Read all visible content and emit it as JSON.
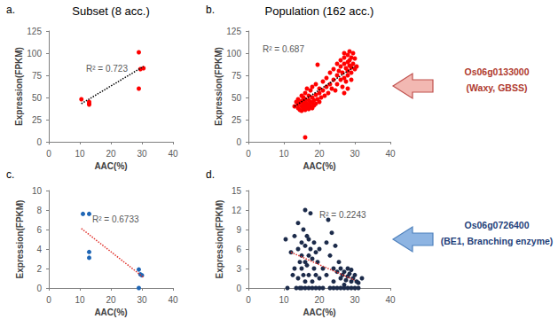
{
  "column_titles": [
    "Subset (8 acc.)",
    "Population (162 acc.)"
  ],
  "genes": [
    {
      "id": "Os06g0133000",
      "name": "(Waxy, GBSS)",
      "color": "#b03a2e"
    },
    {
      "id": "Os06g0726400",
      "name": "(BE1, Branching enzyme)",
      "color": "#1f3f7a"
    }
  ],
  "chart_data": [
    {
      "type": "scatter",
      "title": "a.",
      "xlabel": "AAC(%)",
      "ylabel": "Expression(FPKM)",
      "xlim": [
        0,
        40
      ],
      "xticks": [
        0,
        10,
        20,
        30,
        40
      ],
      "ylim": [
        0,
        125
      ],
      "yticks": [
        0,
        25,
        50,
        75,
        100,
        125
      ],
      "grid": false,
      "annotation": "R² = 0.723",
      "series": [
        {
          "type": "scatter",
          "color": "#ff0000",
          "marker": "circle",
          "x": [
            10.5,
            13,
            13,
            13,
            29,
            29.5,
            30.5,
            29
          ],
          "values": [
            48,
            45,
            43,
            42,
            101,
            82,
            83,
            60
          ]
        },
        {
          "type": "line",
          "color": "#000000",
          "line_style": "dotted",
          "x": [
            10.5,
            30.5
          ],
          "values": [
            43,
            85
          ]
        }
      ]
    },
    {
      "type": "scatter",
      "title": "b.",
      "xlabel": "AAC(%)",
      "ylabel": "Expression(FPKM)",
      "xlim": [
        0,
        40
      ],
      "xticks": [
        0,
        10,
        20,
        30,
        40
      ],
      "ylim": [
        0,
        125
      ],
      "yticks": [
        0,
        25,
        50,
        75,
        100,
        125
      ],
      "grid": false,
      "annotation": "R² = 0.687",
      "series": [
        {
          "type": "scatter",
          "color": "#ff0000",
          "marker": "circle",
          "x": [
            13,
            13.5,
            14,
            14,
            14,
            14.5,
            14.5,
            15,
            15,
            15,
            15,
            15.5,
            15.5,
            15.5,
            16,
            16,
            16,
            16,
            16,
            16,
            16.5,
            16.5,
            16.5,
            17,
            17,
            17,
            17,
            17.5,
            17.5,
            17.5,
            18,
            18,
            18,
            18,
            18.5,
            18.5,
            19,
            19,
            19,
            19.5,
            19.5,
            20,
            20,
            20,
            20.5,
            21,
            21,
            21.5,
            22,
            22,
            22.5,
            23,
            23,
            23.5,
            24,
            24,
            24.5,
            25,
            25,
            25,
            25.5,
            26,
            26,
            26,
            26.5,
            26.5,
            27,
            27,
            27,
            27,
            27.5,
            27.5,
            28,
            28,
            28,
            28,
            28.5,
            28.5,
            28.5,
            29,
            29,
            29,
            29.5,
            29.5,
            30,
            30,
            30.5,
            28,
            27,
            29
          ],
          "values": [
            40,
            45,
            38,
            42,
            48,
            36,
            44,
            35,
            40,
            46,
            52,
            38,
            43,
            50,
            36,
            41,
            45,
            48,
            55,
            5,
            39,
            43,
            60,
            37,
            42,
            47,
            52,
            40,
            45,
            58,
            38,
            44,
            50,
            62,
            41,
            47,
            43,
            53,
            65,
            87,
            48,
            45,
            55,
            60,
            50,
            58,
            68,
            52,
            62,
            72,
            55,
            65,
            78,
            60,
            70,
            82,
            58,
            75,
            88,
            65,
            80,
            70,
            92,
            85,
            62,
            78,
            95,
            88,
            72,
            100,
            83,
            68,
            90,
            98,
            80,
            75,
            102,
            86,
            92,
            95,
            84,
            78,
            100,
            88,
            82,
            94,
            85,
            60,
            55,
            70
          ]
        },
        {
          "type": "line",
          "color": "#000000",
          "line_style": "dotted",
          "x": [
            13,
            30
          ],
          "values": [
            40,
            85
          ]
        }
      ]
    },
    {
      "type": "scatter",
      "title": "c.",
      "xlabel": "AAC(%)",
      "ylabel": "Expression(FPKM)",
      "xlim": [
        0,
        40
      ],
      "xticks": [
        0,
        10,
        20,
        30,
        40
      ],
      "ylim": [
        0,
        10
      ],
      "yticks": [
        0,
        2,
        4,
        6,
        8,
        10
      ],
      "grid": false,
      "annotation": "R² = 0.6733",
      "series": [
        {
          "type": "scatter",
          "color": "#1f66b5",
          "marker": "circle",
          "x": [
            11,
            13,
            13,
            13,
            29,
            29.5,
            30,
            29
          ],
          "values": [
            7.6,
            7.6,
            3.7,
            3.1,
            1.9,
            1.4,
            1.3,
            0
          ]
        },
        {
          "type": "line",
          "color": "#e0302a",
          "line_style": "dotted",
          "x": [
            10.5,
            30.5
          ],
          "values": [
            6.1,
            1.1
          ]
        }
      ]
    },
    {
      "type": "scatter",
      "title": "d.",
      "xlabel": "AAC(%)",
      "ylabel": "Expression(FPKM)",
      "xlim": [
        0,
        40
      ],
      "xticks": [
        0,
        10,
        20,
        30,
        40
      ],
      "ylim": [
        0,
        15
      ],
      "yticks": [
        0,
        3,
        6,
        9,
        12,
        15
      ],
      "grid": false,
      "annotation": "R² = 0.2243",
      "series": [
        {
          "type": "scatter",
          "color": "#1c2b4a",
          "marker": "circle",
          "x": [
            10.5,
            11,
            12,
            12.5,
            13,
            13,
            13.5,
            14,
            14,
            14,
            14.5,
            14.5,
            15,
            15,
            15,
            15,
            15.5,
            15.5,
            16,
            16,
            16,
            16,
            16,
            16.5,
            16.5,
            17,
            17,
            17,
            17,
            17.5,
            17.5,
            18,
            18,
            18,
            18.5,
            18.5,
            19,
            19,
            19,
            19.5,
            20,
            20,
            20,
            21,
            21,
            22,
            22,
            22.5,
            23,
            23,
            23.5,
            24,
            24,
            24,
            24.5,
            25,
            25,
            25.5,
            26,
            26,
            26,
            26.5,
            27,
            27,
            27,
            27.5,
            28,
            28,
            28,
            28.5,
            29,
            29,
            29,
            29.5,
            30,
            30,
            30.5,
            31,
            31,
            32
          ],
          "values": [
            7.5,
            0,
            5.5,
            2,
            8,
            3,
            0,
            6,
            1.5,
            10,
            4,
            0,
            7,
            3,
            0,
            5,
            9,
            2,
            12,
            6.5,
            4,
            0,
            1,
            8,
            3.5,
            5,
            7.5,
            0,
            2,
            6,
            11.5,
            4.5,
            1,
            0,
            3,
            7,
            5.5,
            2,
            0,
            4,
            6,
            1.5,
            0,
            3,
            0,
            7,
            2,
            10.5,
            5,
            0,
            8.5,
            3,
            1,
            0,
            6.5,
            2.5,
            0,
            4,
            1.5,
            0,
            3,
            2,
            0.5,
            2.5,
            0,
            1.2,
            3,
            0,
            1.8,
            2.2,
            1,
            0,
            2.8,
            1.5,
            0,
            2,
            1,
            0.8,
            0,
            1.5
          ]
        },
        {
          "type": "line",
          "color": "#e0302a",
          "line_style": "dotted",
          "x": [
            12,
            30
          ],
          "values": [
            5.5,
            1.2
          ]
        }
      ]
    }
  ]
}
